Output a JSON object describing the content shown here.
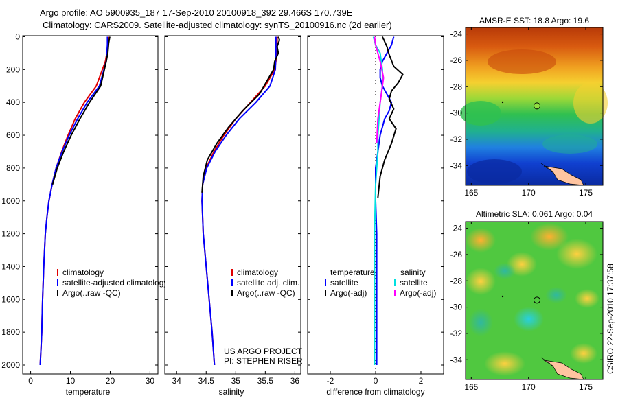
{
  "header": {
    "title_line1": "Argo profile: AO 5900935_187 17-Sep-2010 20100918_392 29.466S 170.739E",
    "title_line2": "Climatology: CARS2009. Satellite-adjusted climatology: synTS_20100916.nc (2d earlier)"
  },
  "side_label": "CSIRO 22-Sep-2010 17:37:58",
  "colors": {
    "climatology": "#e00000",
    "satellite": "#0000ff",
    "argo": "#000000",
    "satellite_salinity": "#00e0e0",
    "argo_adj_salinity": "#ff00ff"
  },
  "chart_data": [
    {
      "id": "temperature",
      "type": "line",
      "xlabel": "temperature",
      "ylabel": "",
      "xlim": [
        -2,
        32
      ],
      "ylim": [
        2050,
        0
      ],
      "xticks": [
        0,
        10,
        20,
        30
      ],
      "yticks": [
        0,
        200,
        400,
        600,
        800,
        1000,
        1200,
        1400,
        1600,
        1800,
        2000
      ],
      "legend_position": "lower-right",
      "series": [
        {
          "name": "climatology",
          "color": "#e00000",
          "x": [
            19.6,
            19.5,
            18.8,
            16.5,
            13.5,
            11.2,
            9.4,
            7.8,
            6.4,
            5.4,
            4.6,
            4.1,
            3.7,
            3.3,
            3.0,
            2.8,
            2.6,
            2.4
          ],
          "y": [
            0,
            50,
            150,
            300,
            400,
            500,
            600,
            700,
            800,
            900,
            1000,
            1100,
            1200,
            1400,
            1600,
            1800,
            1900,
            2000
          ]
        },
        {
          "name": "satellite-adjusted climatology",
          "color": "#0000ff",
          "x": [
            19.3,
            19.3,
            19.0,
            17.3,
            14.2,
            11.8,
            9.7,
            7.9,
            6.4,
            5.4,
            4.6,
            4.1,
            3.7,
            3.3,
            3.0,
            2.8,
            2.6,
            2.4
          ],
          "y": [
            0,
            50,
            150,
            300,
            400,
            500,
            600,
            700,
            800,
            900,
            1000,
            1100,
            1200,
            1400,
            1600,
            1800,
            1900,
            2000
          ]
        },
        {
          "name": "Argo(..raw -QC)",
          "color": "#000000",
          "x": [
            19.9,
            19.6,
            19.4,
            19.0,
            17.6,
            14.8,
            12.4,
            10.2,
            8.3,
            6.7,
            5.5
          ],
          "y": [
            0,
            40,
            100,
            150,
            300,
            400,
            500,
            600,
            700,
            800,
            900
          ]
        }
      ]
    },
    {
      "id": "salinity",
      "type": "line",
      "xlabel": "salinity",
      "ylabel": "",
      "xlim": [
        33.8,
        36.1
      ],
      "ylim": [
        2050,
        0
      ],
      "xticks": [
        34,
        34.5,
        35,
        35.5,
        36
      ],
      "yticks": [
        0,
        200,
        400,
        600,
        800,
        1000,
        1200,
        1400,
        1600,
        1800,
        2000
      ],
      "legend_position": "lower-right",
      "annotation_lines": [
        "US ARGO PROJECT",
        "PI: STEPHEN RISER"
      ],
      "series": [
        {
          "name": "climatology",
          "color": "#e00000",
          "x": [
            35.7,
            35.7,
            35.66,
            35.5,
            35.25,
            35.0,
            34.8,
            34.63,
            34.5,
            34.44,
            34.43,
            34.45,
            34.5,
            34.55,
            34.6,
            34.62,
            34.64
          ],
          "y": [
            0,
            100,
            200,
            300,
            400,
            500,
            600,
            700,
            800,
            900,
            1000,
            1200,
            1400,
            1600,
            1800,
            1900,
            2000
          ]
        },
        {
          "name": "satellite adj. clim.",
          "color": "#0000ff",
          "x": [
            35.68,
            35.68,
            35.67,
            35.58,
            35.34,
            35.06,
            34.84,
            34.65,
            34.51,
            34.44,
            34.43,
            34.45,
            34.5,
            34.55,
            34.6,
            34.62,
            34.64
          ],
          "y": [
            0,
            100,
            200,
            300,
            400,
            500,
            600,
            700,
            800,
            900,
            1000,
            1200,
            1400,
            1600,
            1800,
            1900,
            2000
          ]
        },
        {
          "name": "Argo(..raw -QC)",
          "color": "#000000",
          "x": [
            35.72,
            35.74,
            35.7,
            35.72,
            35.66,
            35.64,
            35.4,
            35.12,
            34.88,
            34.68,
            34.52,
            34.45,
            34.43
          ],
          "y": [
            0,
            20,
            60,
            100,
            150,
            200,
            350,
            450,
            550,
            650,
            750,
            850,
            950
          ]
        }
      ]
    },
    {
      "id": "difference",
      "type": "line",
      "xlabel": "difference from climatology",
      "ylabel": "",
      "xlim": [
        -3,
        3
      ],
      "ylim": [
        2050,
        0
      ],
      "xticks": [
        -2,
        0,
        2
      ],
      "yticks": [
        0,
        200,
        400,
        600,
        800,
        1000,
        1200,
        1400,
        1600,
        1800,
        2000
      ],
      "legend_position": "lower-right",
      "legend_headers": [
        "temperature",
        "salinity"
      ],
      "series": [
        {
          "name": "satellite",
          "group": "temperature",
          "color": "#0000ff",
          "x": [
            0.8,
            0.7,
            0.5,
            0.3,
            0.2,
            0.2,
            0.3,
            0.5,
            0.7,
            0.6,
            0.4,
            0.2,
            0.1,
            0.0,
            0.0,
            0.0,
            0.05,
            0.05,
            0.05,
            0.05
          ],
          "y": [
            0,
            50,
            100,
            150,
            200,
            250,
            300,
            350,
            400,
            450,
            500,
            600,
            700,
            800,
            900,
            1000,
            1200,
            1600,
            1900,
            2000
          ]
        },
        {
          "name": "Argo(-adj)",
          "group": "temperature",
          "color": "#000000",
          "x": [
            0.3,
            0.5,
            0.6,
            0.8,
            1.2,
            1.0,
            0.7,
            0.6,
            0.8,
            0.6,
            0.9,
            0.7,
            0.4,
            0.2,
            0.1
          ],
          "y": [
            0,
            60,
            110,
            180,
            230,
            280,
            330,
            380,
            440,
            500,
            560,
            650,
            750,
            850,
            980
          ]
        },
        {
          "name": "satellite",
          "group": "salinity",
          "color": "#00e0e0",
          "x": [
            -0.1,
            0.0,
            0.2,
            0.3,
            0.3,
            0.2,
            0.15,
            0.1,
            0.1,
            0.05,
            0.0,
            -0.05,
            -0.05,
            -0.05,
            -0.05
          ],
          "y": [
            0,
            50,
            100,
            200,
            300,
            400,
            500,
            600,
            700,
            800,
            900,
            1200,
            1500,
            1800,
            2000
          ]
        },
        {
          "name": "Argo(-adj)",
          "group": "salinity",
          "color": "#ff00ff",
          "x": [
            -0.05,
            0.0,
            0.2,
            0.35,
            0.25,
            0.1,
            0.05
          ],
          "y": [
            0,
            50,
            150,
            250,
            350,
            500,
            650
          ]
        }
      ]
    },
    {
      "id": "sst_map",
      "type": "heatmap",
      "title": "AMSR-E SST: 18.8  Argo: 19.6",
      "xlim": [
        164.5,
        176.5
      ],
      "ylim": [
        -35.5,
        -23.5
      ],
      "xticks": [
        165,
        170,
        175
      ],
      "yticks": [
        -24,
        -26,
        -28,
        -30,
        -32,
        -34
      ],
      "argo_position": {
        "lon": 170.739,
        "lat": -29.466
      }
    },
    {
      "id": "sla_map",
      "type": "heatmap",
      "title": "Altimetric SLA: 0.061  Argo: 0.04",
      "xlim": [
        164.5,
        176.5
      ],
      "ylim": [
        -35.5,
        -23.5
      ],
      "xticks": [
        165,
        170,
        175
      ],
      "yticks": [
        -24,
        -26,
        -28,
        -30,
        -32,
        -34
      ],
      "argo_position": {
        "lon": 170.739,
        "lat": -29.466
      }
    }
  ]
}
